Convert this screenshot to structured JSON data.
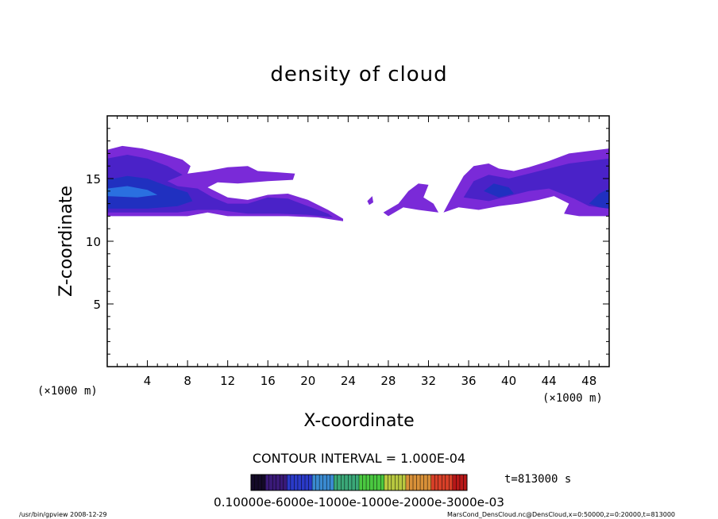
{
  "chart_data": {
    "type": "heatmap",
    "title": "density of cloud",
    "xlabel": "X-coordinate",
    "ylabel": "Z-coordinate",
    "x_unit_left": "(×1000 m)",
    "x_unit_right": "(×1000 m)",
    "xlim": [
      0,
      50
    ],
    "ylim": [
      0,
      20
    ],
    "x_ticks": [
      4,
      8,
      12,
      16,
      20,
      24,
      28,
      32,
      36,
      40,
      44,
      48
    ],
    "y_ticks": [
      5,
      10,
      15
    ],
    "contour_interval": "CONTOUR INTERVAL = 1.000E-04",
    "time_label": "t=813000 s",
    "colorbar_labels": "0.10000e-6000e-1000e-1000e-2000e-3000e-03",
    "colorbar_colors": [
      "#140a28",
      "#3a1a78",
      "#2a3ac8",
      "#3a8ad0",
      "#3aa878",
      "#4ac840",
      "#b8c840",
      "#d89038",
      "#d84028",
      "#b81818"
    ],
    "cloud_colors": {
      "light": "#7a2ad8",
      "mid": "#4a22c8",
      "dark": "#2030c0",
      "core": "#2a70e0"
    },
    "cloud_regions": [
      {
        "level": "light",
        "points": [
          [
            0,
            17.3
          ],
          [
            1.5,
            17.6
          ],
          [
            3.5,
            17.4
          ],
          [
            5.5,
            17.0
          ],
          [
            7.5,
            16.5
          ],
          [
            8.3,
            16.0
          ],
          [
            8.0,
            15.4
          ],
          [
            10,
            15.6
          ],
          [
            12,
            15.9
          ],
          [
            14,
            16.0
          ],
          [
            15,
            15.6
          ],
          [
            17,
            15.5
          ],
          [
            18.7,
            15.4
          ],
          [
            18.5,
            14.9
          ],
          [
            16,
            14.8
          ],
          [
            13,
            14.6
          ],
          [
            11,
            14.7
          ],
          [
            10,
            14.3
          ],
          [
            12,
            13.5
          ],
          [
            14,
            13.3
          ],
          [
            16,
            13.7
          ],
          [
            18,
            13.8
          ],
          [
            20,
            13.3
          ],
          [
            22,
            12.5
          ],
          [
            23.5,
            11.8
          ],
          [
            23.5,
            11.6
          ],
          [
            21,
            11.9
          ],
          [
            18,
            12.0
          ],
          [
            15,
            12.0
          ],
          [
            12,
            12.0
          ],
          [
            10,
            12.3
          ],
          [
            8,
            12.0
          ],
          [
            6,
            12.0
          ],
          [
            3,
            12.0
          ],
          [
            0,
            12.0
          ]
        ]
      },
      {
        "level": "mid",
        "points": [
          [
            0,
            16.6
          ],
          [
            2,
            16.9
          ],
          [
            4,
            16.6
          ],
          [
            6,
            16.0
          ],
          [
            7.5,
            15.3
          ],
          [
            6,
            14.8
          ],
          [
            7,
            14.4
          ],
          [
            9,
            14.2
          ],
          [
            10.5,
            13.5
          ],
          [
            12,
            13.0
          ],
          [
            14,
            13.0
          ],
          [
            16,
            13.5
          ],
          [
            18,
            13.4
          ],
          [
            20,
            12.8
          ],
          [
            22,
            12.2
          ],
          [
            22.5,
            11.9
          ],
          [
            20,
            12.1
          ],
          [
            17,
            12.2
          ],
          [
            14,
            12.2
          ],
          [
            11,
            12.5
          ],
          [
            9,
            12.5
          ],
          [
            7,
            12.3
          ],
          [
            4,
            12.3
          ],
          [
            0,
            12.3
          ]
        ]
      },
      {
        "level": "dark",
        "points": [
          [
            0,
            14.9
          ],
          [
            2,
            15.2
          ],
          [
            4,
            15.0
          ],
          [
            6,
            14.4
          ],
          [
            8,
            13.9
          ],
          [
            8.5,
            13.2
          ],
          [
            7,
            12.8
          ],
          [
            4,
            12.6
          ],
          [
            0,
            12.6
          ]
        ]
      },
      {
        "level": "core",
        "points": [
          [
            0,
            14.2
          ],
          [
            2,
            14.4
          ],
          [
            4,
            14.1
          ],
          [
            5,
            13.7
          ],
          [
            3,
            13.5
          ],
          [
            0,
            13.6
          ]
        ]
      },
      {
        "level": "light",
        "points": [
          [
            27.5,
            12.3
          ],
          [
            29,
            13.0
          ],
          [
            30,
            14.0
          ],
          [
            31,
            14.6
          ],
          [
            32,
            14.5
          ],
          [
            31.5,
            13.5
          ],
          [
            32.5,
            13.0
          ],
          [
            33,
            12.3
          ],
          [
            31,
            12.5
          ],
          [
            29.5,
            12.7
          ],
          [
            28,
            12.0
          ]
        ]
      },
      {
        "level": "light",
        "points": [
          [
            33.5,
            12.3
          ],
          [
            34.5,
            13.8
          ],
          [
            35.5,
            15.2
          ],
          [
            36.5,
            16.0
          ],
          [
            38,
            16.2
          ],
          [
            39,
            15.8
          ],
          [
            40.5,
            15.6
          ],
          [
            42,
            15.9
          ],
          [
            44,
            16.4
          ],
          [
            46,
            17.0
          ],
          [
            48,
            17.2
          ],
          [
            50,
            17.4
          ],
          [
            50,
            12.0
          ],
          [
            47,
            12.0
          ],
          [
            45.5,
            12.2
          ],
          [
            46,
            13.0
          ],
          [
            44.5,
            13.6
          ],
          [
            43,
            13.3
          ],
          [
            41,
            13.0
          ],
          [
            39,
            12.8
          ],
          [
            37,
            12.5
          ],
          [
            35,
            12.7
          ]
        ]
      },
      {
        "level": "mid",
        "points": [
          [
            35.5,
            13.5
          ],
          [
            36.5,
            14.8
          ],
          [
            38,
            15.3
          ],
          [
            40,
            15.0
          ],
          [
            42,
            15.4
          ],
          [
            44,
            15.8
          ],
          [
            46,
            16.2
          ],
          [
            48,
            16.4
          ],
          [
            50,
            16.6
          ],
          [
            50,
            12.6
          ],
          [
            48,
            12.8
          ],
          [
            46.5,
            13.4
          ],
          [
            44,
            14.2
          ],
          [
            42,
            14.0
          ],
          [
            40,
            13.6
          ],
          [
            38,
            13.2
          ]
        ]
      },
      {
        "level": "dark",
        "points": [
          [
            37.5,
            14.0
          ],
          [
            38.5,
            14.6
          ],
          [
            40,
            14.3
          ],
          [
            40.5,
            13.8
          ],
          [
            39,
            13.5
          ]
        ]
      },
      {
        "level": "dark",
        "points": [
          [
            48,
            13.0
          ],
          [
            49,
            13.8
          ],
          [
            50,
            14.2
          ],
          [
            50,
            12.6
          ],
          [
            49,
            12.7
          ]
        ]
      },
      {
        "level": "light",
        "points": [
          [
            25.9,
            13.2
          ],
          [
            26.4,
            13.6
          ],
          [
            26.5,
            13.1
          ],
          [
            26.1,
            12.9
          ]
        ]
      }
    ]
  },
  "footer": {
    "left": "/usr/bin/gpview   2008-12-29",
    "right": "MarsCond_DensCloud.nc@DensCloud,x=0:50000,z=0:20000,t=813000"
  }
}
